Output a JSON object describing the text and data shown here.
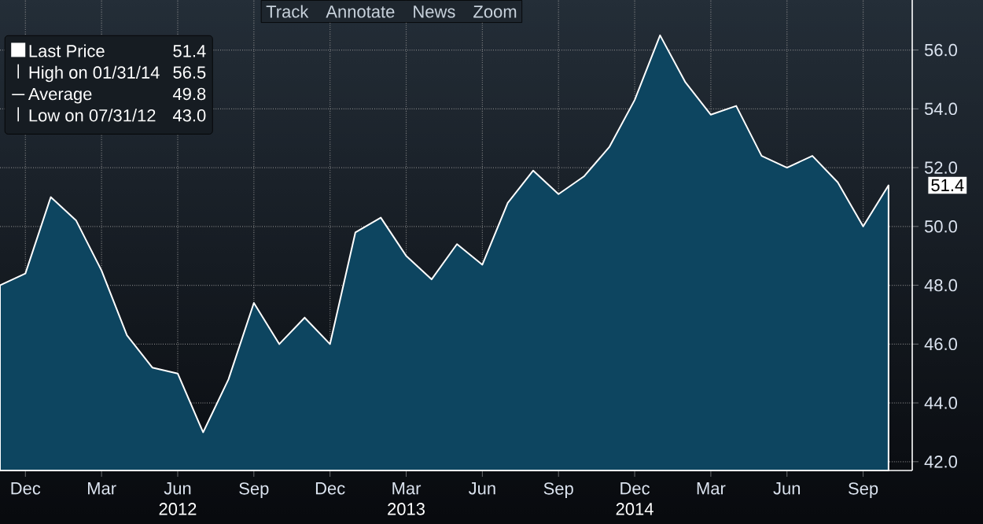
{
  "chart_data": {
    "type": "area",
    "x": [
      "2011-11-30",
      "2011-12-31",
      "2012-01-31",
      "2012-02-29",
      "2012-03-31",
      "2012-04-30",
      "2012-05-31",
      "2012-06-30",
      "2012-07-31",
      "2012-08-31",
      "2012-09-30",
      "2012-10-31",
      "2012-11-30",
      "2012-12-31",
      "2013-01-31",
      "2013-02-28",
      "2013-03-31",
      "2013-04-30",
      "2013-05-31",
      "2013-06-30",
      "2013-07-31",
      "2013-08-31",
      "2013-09-30",
      "2013-10-31",
      "2013-11-30",
      "2013-12-31",
      "2014-01-31",
      "2014-02-28",
      "2014-03-31",
      "2014-04-30",
      "2014-05-31",
      "2014-06-30",
      "2014-07-31",
      "2014-08-31",
      "2014-09-30",
      "2014-10-31"
    ],
    "series": [
      {
        "name": "Last Price",
        "color": "#0d4560",
        "values": [
          48.0,
          48.4,
          51.0,
          50.2,
          48.5,
          46.3,
          45.2,
          45.0,
          43.0,
          44.8,
          47.4,
          46.0,
          46.9,
          46.0,
          49.8,
          50.3,
          49.0,
          48.2,
          49.4,
          48.7,
          50.8,
          51.9,
          51.1,
          51.7,
          52.7,
          54.3,
          56.5,
          54.9,
          53.8,
          54.1,
          52.4,
          52.0,
          52.4,
          51.5,
          50.0,
          51.4
        ]
      }
    ],
    "xlim": [
      "2011-11-30",
      "2014-11-28"
    ],
    "ylim": [
      41.7,
      57.7
    ],
    "xticks": [
      {
        "value": "2011-12-31",
        "label": "Dec"
      },
      {
        "value": "2012-03-31",
        "label": "Mar"
      },
      {
        "value": "2012-06-30",
        "label": "Jun"
      },
      {
        "value": "2012-09-30",
        "label": "Sep"
      },
      {
        "value": "2012-12-31",
        "label": "Dec"
      },
      {
        "value": "2013-03-31",
        "label": "Mar"
      },
      {
        "value": "2013-06-30",
        "label": "Jun"
      },
      {
        "value": "2013-09-30",
        "label": "Sep"
      },
      {
        "value": "2013-12-31",
        "label": "Dec"
      },
      {
        "value": "2014-03-31",
        "label": "Mar"
      },
      {
        "value": "2014-06-30",
        "label": "Jun"
      },
      {
        "value": "2014-09-30",
        "label": "Sep"
      }
    ],
    "yticks": [
      {
        "value": 42,
        "label": "42.0"
      },
      {
        "value": 44,
        "label": "44.0"
      },
      {
        "value": 46,
        "label": "46.0"
      },
      {
        "value": 48,
        "label": "48.0"
      },
      {
        "value": 50,
        "label": "50.0"
      },
      {
        "value": 52,
        "label": "52.0"
      },
      {
        "value": 54,
        "label": "54.0"
      },
      {
        "value": 56,
        "label": "56.0"
      }
    ],
    "grid": true,
    "legend": "top left",
    "annotations": [
      "Track",
      "Annotate",
      "News",
      "Zoom",
      "51.4",
      "High on 01/31/14",
      "56.5",
      "Average",
      "49.8",
      "Low on 07/31/12",
      "43.0",
      {
        "text": "51.4",
        "x": "2014-10-31",
        "y": 51.4
      },
      "2012",
      "2013",
      "2014"
    ]
  }
}
